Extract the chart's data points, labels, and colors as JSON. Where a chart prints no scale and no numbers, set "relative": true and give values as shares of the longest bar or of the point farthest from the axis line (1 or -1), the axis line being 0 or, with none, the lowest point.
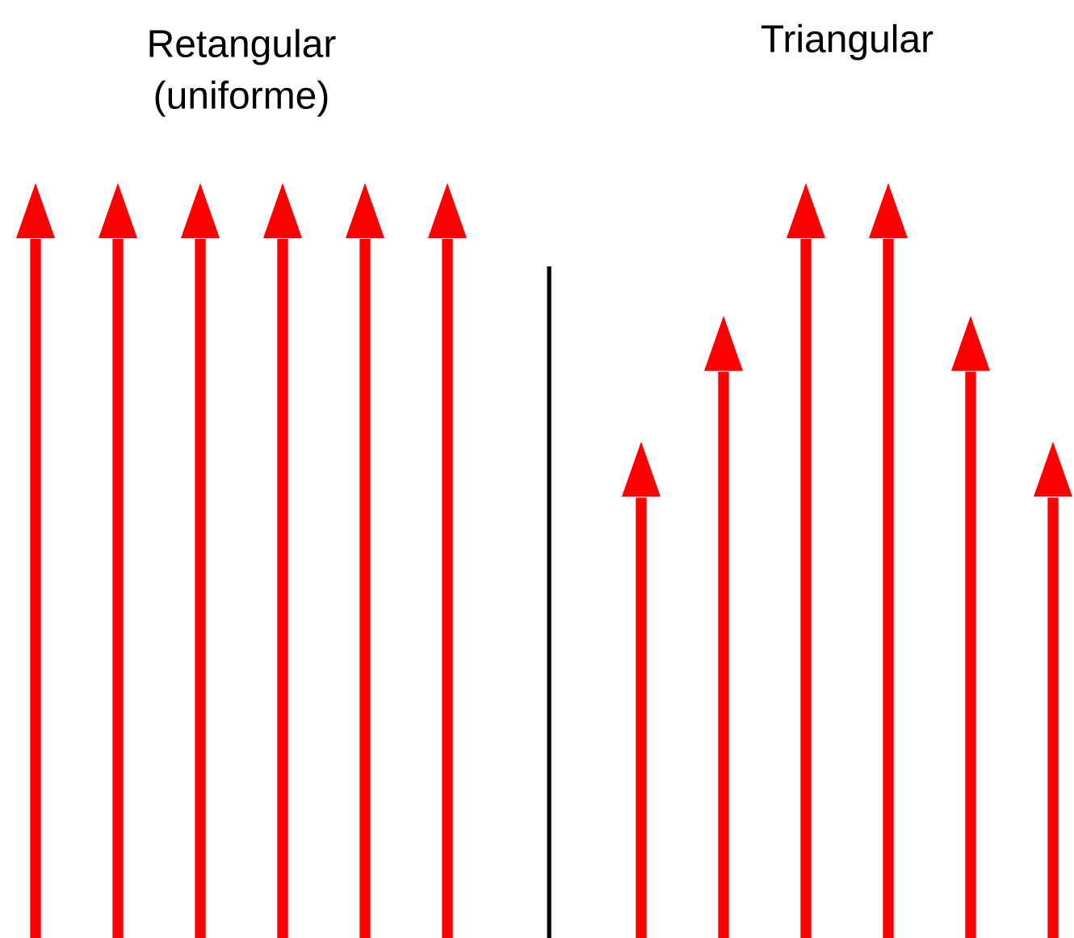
{
  "chart_data": [
    {
      "type": "bar",
      "title": "Retangular (uniforme)",
      "categories": [
        null,
        null,
        null,
        null,
        null,
        null
      ],
      "values": [
        1,
        1,
        1,
        1,
        1,
        1
      ],
      "color": "#ff0000",
      "relative": true
    },
    {
      "type": "bar",
      "title": "Triangular",
      "categories": [
        null,
        null,
        null,
        null,
        null,
        null
      ],
      "values": [
        0.63,
        0.81,
        1,
        1,
        0.81,
        0.63
      ],
      "color": "#ff0000",
      "relative": true
    }
  ]
}
